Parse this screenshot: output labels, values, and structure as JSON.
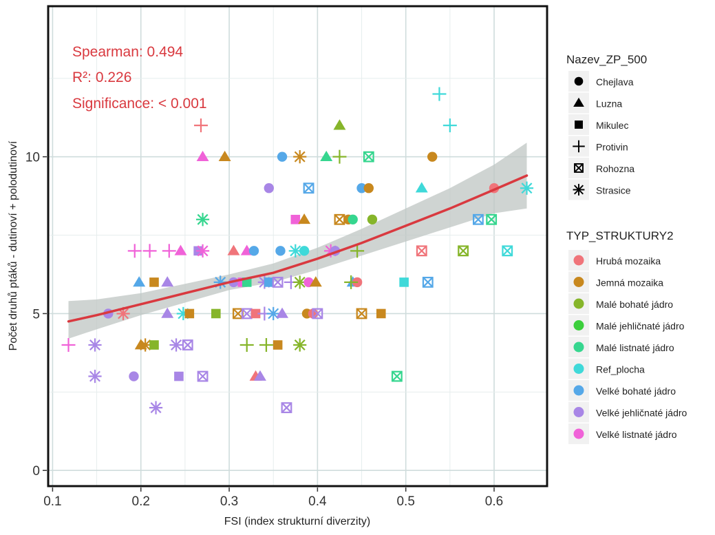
{
  "chart_data": {
    "type": "scatter",
    "xlabel": "FSI (index strukturní diverzity)",
    "ylabel": "Počet druhů ptáků - dutinoví + polodutinoví",
    "xlim": [
      0.095,
      0.66
    ],
    "ylim": [
      -0.5,
      14.8
    ],
    "xticks": [
      0.1,
      0.2,
      0.3,
      0.4,
      0.5,
      0.6
    ],
    "xtick_labels": [
      "0.1",
      "0.2",
      "0.3",
      "0.4",
      "0.5",
      "0.6"
    ],
    "yticks": [
      0,
      5,
      10
    ],
    "ytick_labels": [
      "0",
      "5",
      "10"
    ],
    "grid": true,
    "annotations": {
      "spearman": "Spearman: 0.494",
      "r2": "R²: 0.226",
      "significance": "Significance: < 0.001"
    },
    "annotation_color": "#d9393f",
    "legend_shape": {
      "title": "Nazev_ZP_500",
      "items": [
        {
          "label": "Chejlava",
          "shape": "circle"
        },
        {
          "label": "Luzna",
          "shape": "triangle"
        },
        {
          "label": "Mikulec",
          "shape": "square"
        },
        {
          "label": "Protivin",
          "shape": "plus"
        },
        {
          "label": "Rohozna",
          "shape": "boxcross"
        },
        {
          "label": "Strasice",
          "shape": "asterisk"
        }
      ]
    },
    "legend_color": {
      "title": "TYP_STRUKTURY2",
      "items": [
        {
          "label": "Hrubá mozaika",
          "color": "#f0747a"
        },
        {
          "label": "Jemná mozaika",
          "color": "#c8881e"
        },
        {
          "label": "Malé bohaté jádro",
          "color": "#86b52a"
        },
        {
          "label": "Malé jehličnaté jádro",
          "color": "#3ccf3c"
        },
        {
          "label": "Malé listnaté jádro",
          "color": "#36d68f"
        },
        {
          "label": "Ref_plocha",
          "color": "#3fd9d9"
        },
        {
          "label": "Velké bohaté jádro",
          "color": "#55a8e8"
        },
        {
          "label": "Velké jehličnaté jádro",
          "color": "#a886e6"
        },
        {
          "label": "Velké listnaté jádro",
          "color": "#f062d8"
        }
      ]
    },
    "trend": {
      "color": "#d9393f",
      "band_color": "#bfc6c3",
      "x": [
        0.118,
        0.15,
        0.2,
        0.25,
        0.3,
        0.35,
        0.4,
        0.45,
        0.5,
        0.55,
        0.6,
        0.637
      ],
      "y": [
        4.75,
        4.95,
        5.3,
        5.65,
        6.0,
        6.3,
        6.75,
        7.25,
        7.8,
        8.35,
        8.95,
        9.4
      ],
      "lower": [
        4.2,
        4.5,
        4.95,
        5.35,
        5.75,
        6.0,
        6.4,
        6.85,
        7.3,
        7.75,
        8.2,
        8.35
      ],
      "upper": [
        5.4,
        5.45,
        5.65,
        5.95,
        6.25,
        6.6,
        7.1,
        7.7,
        8.35,
        9.0,
        9.75,
        10.45
      ]
    },
    "points": [
      {
        "x": 0.268,
        "y": 11,
        "shape": "plus",
        "group": "Hrubá mozaika"
      },
      {
        "x": 0.27,
        "y": 10,
        "shape": "triangle",
        "group": "Velké listnaté jádro"
      },
      {
        "x": 0.295,
        "y": 10,
        "shape": "triangle",
        "group": "Jemná mozaika"
      },
      {
        "x": 0.36,
        "y": 10,
        "shape": "circle",
        "group": "Velké bohaté jádro"
      },
      {
        "x": 0.38,
        "y": 10,
        "shape": "asterisk",
        "group": "Jemná mozaika"
      },
      {
        "x": 0.41,
        "y": 10,
        "shape": "triangle",
        "group": "Malé listnaté jádro"
      },
      {
        "x": 0.425,
        "y": 10,
        "shape": "plus",
        "group": "Malé bohaté jádro"
      },
      {
        "x": 0.425,
        "y": 11,
        "shape": "triangle",
        "group": "Malé bohaté jádro"
      },
      {
        "x": 0.458,
        "y": 10,
        "shape": "boxcross",
        "group": "Malé listnaté jádro"
      },
      {
        "x": 0.53,
        "y": 10,
        "shape": "circle",
        "group": "Jemná mozaika"
      },
      {
        "x": 0.538,
        "y": 12,
        "shape": "plus",
        "group": "Ref_plocha"
      },
      {
        "x": 0.55,
        "y": 11,
        "shape": "plus",
        "group": "Ref_plocha"
      },
      {
        "x": 0.345,
        "y": 9,
        "shape": "circle",
        "group": "Velké jehličnaté jádro"
      },
      {
        "x": 0.39,
        "y": 9,
        "shape": "boxcross",
        "group": "Velké bohaté jádro"
      },
      {
        "x": 0.45,
        "y": 9,
        "shape": "circle",
        "group": "Velké bohaté jádro"
      },
      {
        "x": 0.458,
        "y": 9,
        "shape": "circle",
        "group": "Jemná mozaika"
      },
      {
        "x": 0.518,
        "y": 9,
        "shape": "triangle",
        "group": "Ref_plocha"
      },
      {
        "x": 0.6,
        "y": 9,
        "shape": "circle",
        "group": "Hrubá mozaika"
      },
      {
        "x": 0.637,
        "y": 9,
        "shape": "asterisk",
        "group": "Ref_plocha"
      },
      {
        "x": 0.27,
        "y": 8,
        "shape": "asterisk",
        "group": "Malé listnaté jádro"
      },
      {
        "x": 0.375,
        "y": 8,
        "shape": "square",
        "group": "Velké listnaté jádro"
      },
      {
        "x": 0.385,
        "y": 8,
        "shape": "triangle",
        "group": "Jemná mozaika"
      },
      {
        "x": 0.425,
        "y": 8,
        "shape": "boxcross",
        "group": "Jemná mozaika"
      },
      {
        "x": 0.435,
        "y": 8,
        "shape": "circle",
        "group": "Jemná mozaika"
      },
      {
        "x": 0.44,
        "y": 8,
        "shape": "circle",
        "group": "Malé listnaté jádro"
      },
      {
        "x": 0.462,
        "y": 8,
        "shape": "circle",
        "group": "Malé bohaté jádro"
      },
      {
        "x": 0.582,
        "y": 8,
        "shape": "boxcross",
        "group": "Velké bohaté jádro"
      },
      {
        "x": 0.597,
        "y": 8,
        "shape": "boxcross",
        "group": "Malé listnaté jádro"
      },
      {
        "x": 0.193,
        "y": 7,
        "shape": "plus",
        "group": "Velké listnaté jádro"
      },
      {
        "x": 0.21,
        "y": 7,
        "shape": "plus",
        "group": "Velké listnaté jádro"
      },
      {
        "x": 0.232,
        "y": 7,
        "shape": "plus",
        "group": "Velké listnaté jádro"
      },
      {
        "x": 0.245,
        "y": 7,
        "shape": "triangle",
        "group": "Velké listnaté jádro"
      },
      {
        "x": 0.265,
        "y": 7,
        "shape": "square",
        "group": "Velké jehličnaté jádro"
      },
      {
        "x": 0.27,
        "y": 7,
        "shape": "asterisk",
        "group": "Velké listnaté jádro"
      },
      {
        "x": 0.305,
        "y": 7,
        "shape": "triangle",
        "group": "Hrubá mozaika"
      },
      {
        "x": 0.32,
        "y": 7,
        "shape": "triangle",
        "group": "Velké listnaté jádro"
      },
      {
        "x": 0.328,
        "y": 7,
        "shape": "circle",
        "group": "Velké bohaté jádro"
      },
      {
        "x": 0.358,
        "y": 7,
        "shape": "circle",
        "group": "Velké bohaté jádro"
      },
      {
        "x": 0.375,
        "y": 7,
        "shape": "asterisk",
        "group": "Ref_plocha"
      },
      {
        "x": 0.385,
        "y": 7,
        "shape": "circle",
        "group": "Ref_plocha"
      },
      {
        "x": 0.415,
        "y": 7,
        "shape": "asterisk",
        "group": "Velké listnaté jádro"
      },
      {
        "x": 0.42,
        "y": 7,
        "shape": "circle",
        "group": "Velké jehličnaté jádro"
      },
      {
        "x": 0.445,
        "y": 7,
        "shape": "plus",
        "group": "Malé bohaté jádro"
      },
      {
        "x": 0.518,
        "y": 7,
        "shape": "boxcross",
        "group": "Hrubá mozaika"
      },
      {
        "x": 0.565,
        "y": 7,
        "shape": "boxcross",
        "group": "Malé bohaté jádro"
      },
      {
        "x": 0.615,
        "y": 7,
        "shape": "boxcross",
        "group": "Ref_plocha"
      },
      {
        "x": 0.198,
        "y": 6,
        "shape": "triangle",
        "group": "Velké bohaté jádro"
      },
      {
        "x": 0.215,
        "y": 6,
        "shape": "square",
        "group": "Jemná mozaika"
      },
      {
        "x": 0.23,
        "y": 6,
        "shape": "triangle",
        "group": "Velké jehličnaté jádro"
      },
      {
        "x": 0.29,
        "y": 6,
        "shape": "asterisk",
        "group": "Velké bohaté jádro"
      },
      {
        "x": 0.305,
        "y": 6,
        "shape": "circle",
        "group": "Velké jehličnaté jádro"
      },
      {
        "x": 0.315,
        "y": 6,
        "shape": "square",
        "group": "Velké listnaté jádro"
      },
      {
        "x": 0.32,
        "y": 6,
        "shape": "square",
        "group": "Malé listnaté jádro"
      },
      {
        "x": 0.34,
        "y": 6,
        "shape": "asterisk",
        "group": "Velké jehličnaté jádro"
      },
      {
        "x": 0.345,
        "y": 6,
        "shape": "square",
        "group": "Velké bohaté jádro"
      },
      {
        "x": 0.355,
        "y": 6,
        "shape": "boxcross",
        "group": "Velké jehličnaté jádro"
      },
      {
        "x": 0.37,
        "y": 6,
        "shape": "plus",
        "group": "Velké jehličnaté jádro"
      },
      {
        "x": 0.38,
        "y": 6,
        "shape": "asterisk",
        "group": "Malé bohaté jádro"
      },
      {
        "x": 0.39,
        "y": 6,
        "shape": "circle",
        "group": "Velké listnaté jádro"
      },
      {
        "x": 0.398,
        "y": 6,
        "shape": "triangle",
        "group": "Jemná mozaika"
      },
      {
        "x": 0.44,
        "y": 6,
        "shape": "triangle",
        "group": "Velké bohaté jádro"
      },
      {
        "x": 0.445,
        "y": 6,
        "shape": "circle",
        "group": "Hrubá mozaika"
      },
      {
        "x": 0.438,
        "y": 6,
        "shape": "plus",
        "group": "Malé bohaté jádro"
      },
      {
        "x": 0.498,
        "y": 6,
        "shape": "square",
        "group": "Ref_plocha"
      },
      {
        "x": 0.525,
        "y": 6,
        "shape": "boxcross",
        "group": "Velké bohaté jádro"
      },
      {
        "x": 0.163,
        "y": 5,
        "shape": "circle",
        "group": "Velké jehličnaté jádro"
      },
      {
        "x": 0.18,
        "y": 5,
        "shape": "asterisk",
        "group": "Hrubá mozaika"
      },
      {
        "x": 0.23,
        "y": 5,
        "shape": "triangle",
        "group": "Velké jehličnaté jádro"
      },
      {
        "x": 0.248,
        "y": 5,
        "shape": "asterisk",
        "group": "Ref_plocha"
      },
      {
        "x": 0.255,
        "y": 5,
        "shape": "square",
        "group": "Jemná mozaika"
      },
      {
        "x": 0.285,
        "y": 5,
        "shape": "square",
        "group": "Malé bohaté jádro"
      },
      {
        "x": 0.31,
        "y": 5,
        "shape": "boxcross",
        "group": "Jemná mozaika"
      },
      {
        "x": 0.32,
        "y": 5,
        "shape": "boxcross",
        "group": "Velké jehličnaté jádro"
      },
      {
        "x": 0.33,
        "y": 5,
        "shape": "square",
        "group": "Hrubá mozaika"
      },
      {
        "x": 0.34,
        "y": 5,
        "shape": "plus",
        "group": "Velké jehličnaté jádro"
      },
      {
        "x": 0.35,
        "y": 5,
        "shape": "asterisk",
        "group": "Velké bohaté jádro"
      },
      {
        "x": 0.36,
        "y": 5,
        "shape": "triangle",
        "group": "Velké jehličnaté jádro"
      },
      {
        "x": 0.388,
        "y": 5,
        "shape": "circle",
        "group": "Jemná mozaika"
      },
      {
        "x": 0.395,
        "y": 5,
        "shape": "circle",
        "group": "Hrubá mozaika"
      },
      {
        "x": 0.4,
        "y": 5,
        "shape": "boxcross",
        "group": "Velké jehličnaté jádro"
      },
      {
        "x": 0.45,
        "y": 5,
        "shape": "boxcross",
        "group": "Jemná mozaika"
      },
      {
        "x": 0.472,
        "y": 5,
        "shape": "square",
        "group": "Jemná mozaika"
      },
      {
        "x": 0.118,
        "y": 4,
        "shape": "plus",
        "group": "Velké listnaté jádro"
      },
      {
        "x": 0.148,
        "y": 4,
        "shape": "asterisk",
        "group": "Velké jehličnaté jádro"
      },
      {
        "x": 0.2,
        "y": 4,
        "shape": "triangle",
        "group": "Jemná mozaika"
      },
      {
        "x": 0.205,
        "y": 4,
        "shape": "asterisk",
        "group": "Jemná mozaika"
      },
      {
        "x": 0.215,
        "y": 4,
        "shape": "square",
        "group": "Malé bohaté jádro"
      },
      {
        "x": 0.24,
        "y": 4,
        "shape": "asterisk",
        "group": "Velké jehličnaté jádro"
      },
      {
        "x": 0.253,
        "y": 4,
        "shape": "boxcross",
        "group": "Velké jehličnaté jádro"
      },
      {
        "x": 0.32,
        "y": 4,
        "shape": "plus",
        "group": "Malé bohaté jádro"
      },
      {
        "x": 0.342,
        "y": 4,
        "shape": "plus",
        "group": "Malé bohaté jádro"
      },
      {
        "x": 0.355,
        "y": 4,
        "shape": "square",
        "group": "Jemná mozaika"
      },
      {
        "x": 0.38,
        "y": 4,
        "shape": "asterisk",
        "group": "Malé bohaté jádro"
      },
      {
        "x": 0.148,
        "y": 3,
        "shape": "asterisk",
        "group": "Velké jehličnaté jádro"
      },
      {
        "x": 0.192,
        "y": 3,
        "shape": "circle",
        "group": "Velké jehličnaté jádro"
      },
      {
        "x": 0.243,
        "y": 3,
        "shape": "square",
        "group": "Velké jehličnaté jádro"
      },
      {
        "x": 0.27,
        "y": 3,
        "shape": "boxcross",
        "group": "Velké jehličnaté jádro"
      },
      {
        "x": 0.33,
        "y": 3,
        "shape": "triangle",
        "group": "Hrubá mozaika"
      },
      {
        "x": 0.335,
        "y": 3,
        "shape": "triangle",
        "group": "Velké jehličnaté jádro"
      },
      {
        "x": 0.49,
        "y": 3,
        "shape": "boxcross",
        "group": "Malé listnaté jádro"
      },
      {
        "x": 0.217,
        "y": 2,
        "shape": "asterisk",
        "group": "Velké jehličnaté jádro"
      },
      {
        "x": 0.365,
        "y": 2,
        "shape": "boxcross",
        "group": "Velké jehličnaté jádro"
      }
    ]
  }
}
